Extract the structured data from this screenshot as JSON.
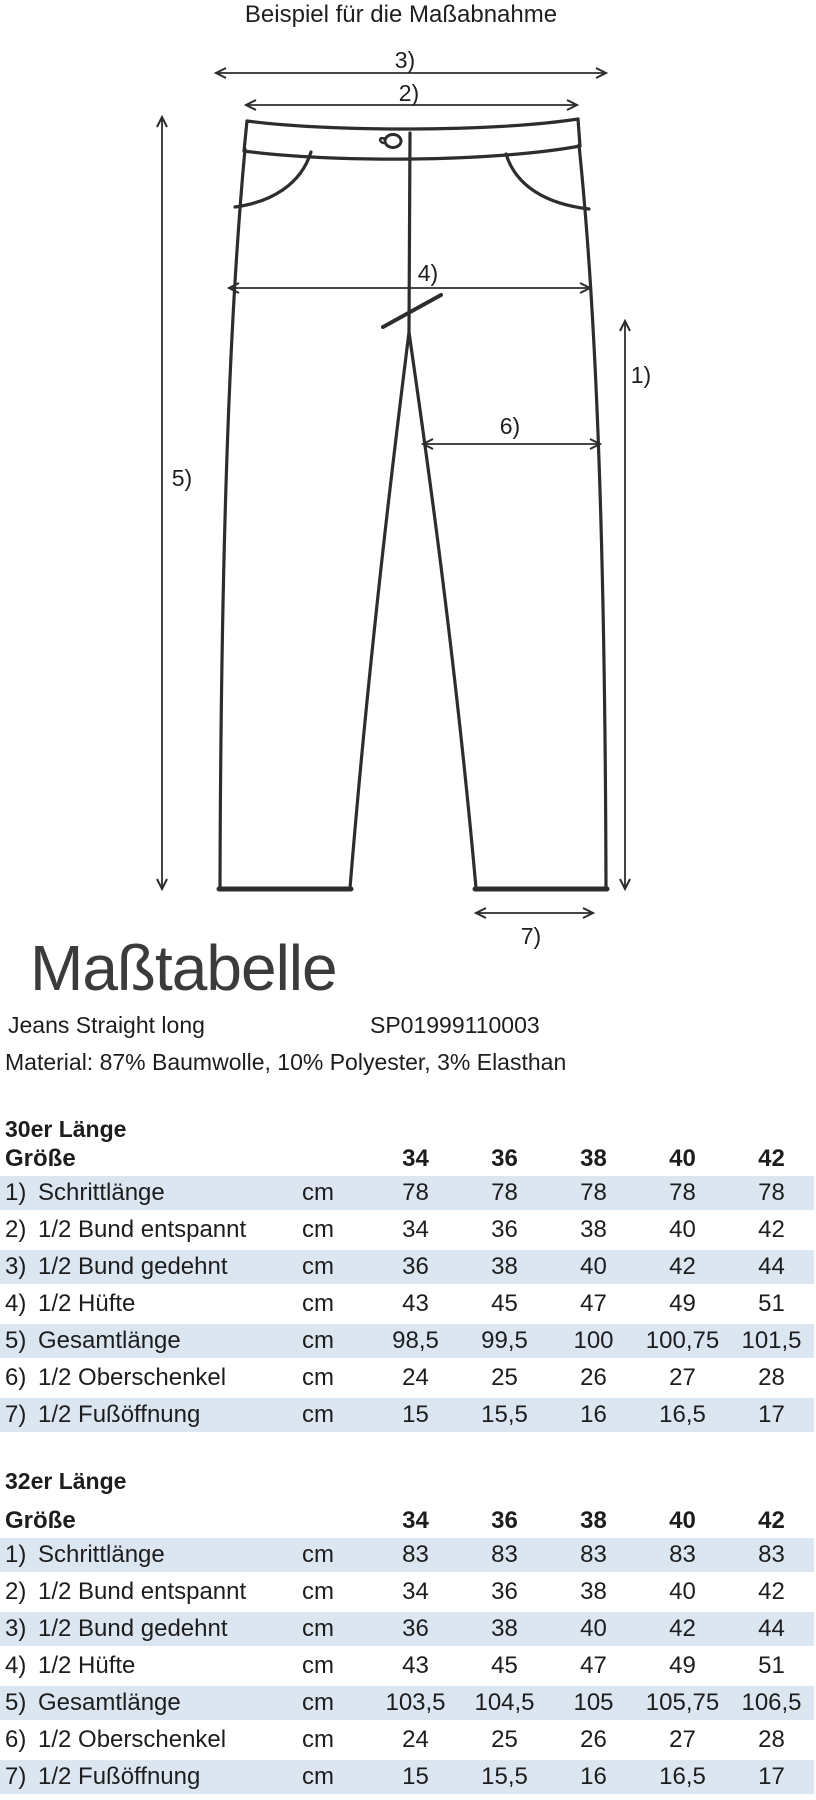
{
  "diagram": {
    "title": "Beispiel für die Maßabnahme",
    "labels": {
      "l1": "1)",
      "l2": "2)",
      "l3": "3)",
      "l4": "4)",
      "l5": "5)",
      "l6": "6)",
      "l7": "7)"
    }
  },
  "info": {
    "heading": "Maßtabelle",
    "product_name": "Jeans Straight long",
    "article_number": "SP01999110003",
    "material": "Material: 87% Baumwolle, 10% Polyester, 3% Elasthan"
  },
  "colors": {
    "row_highlight": "#dce6f1",
    "ink": "#2d2d2d",
    "heading_gray": "#3b3b3b"
  },
  "tables": [
    {
      "section": "30er Länge",
      "header": {
        "label": "Größe",
        "sizes": [
          "34",
          "36",
          "38",
          "40",
          "42"
        ]
      },
      "rows": [
        {
          "num": "1)",
          "label": "Schrittlänge",
          "unit": "cm",
          "values": [
            "78",
            "78",
            "78",
            "78",
            "78"
          ]
        },
        {
          "num": "2)",
          "label": "1/2 Bund entspannt",
          "unit": "cm",
          "values": [
            "34",
            "36",
            "38",
            "40",
            "42"
          ]
        },
        {
          "num": "3)",
          "label": "1/2 Bund gedehnt",
          "unit": "cm",
          "values": [
            "36",
            "38",
            "40",
            "42",
            "44"
          ]
        },
        {
          "num": "4)",
          "label": "1/2 Hüfte",
          "unit": "cm",
          "values": [
            "43",
            "45",
            "47",
            "49",
            "51"
          ]
        },
        {
          "num": "5)",
          "label": "Gesamtlänge",
          "unit": "cm",
          "values": [
            "98,5",
            "99,5",
            "100",
            "100,75",
            "101,5"
          ]
        },
        {
          "num": "6)",
          "label": "1/2 Oberschenkel",
          "unit": "cm",
          "values": [
            "24",
            "25",
            "26",
            "27",
            "28"
          ]
        },
        {
          "num": "7)",
          "label": "1/2 Fußöffnung",
          "unit": "cm",
          "values": [
            "15",
            "15,5",
            "16",
            "16,5",
            "17"
          ]
        }
      ]
    },
    {
      "section": "32er Länge",
      "header": {
        "label": "Größe",
        "sizes": [
          "34",
          "36",
          "38",
          "40",
          "42"
        ]
      },
      "rows": [
        {
          "num": "1)",
          "label": "Schrittlänge",
          "unit": "cm",
          "values": [
            "83",
            "83",
            "83",
            "83",
            "83"
          ]
        },
        {
          "num": "2)",
          "label": "1/2 Bund entspannt",
          "unit": "cm",
          "values": [
            "34",
            "36",
            "38",
            "40",
            "42"
          ]
        },
        {
          "num": "3)",
          "label": "1/2 Bund gedehnt",
          "unit": "cm",
          "values": [
            "36",
            "38",
            "40",
            "42",
            "44"
          ]
        },
        {
          "num": "4)",
          "label": "1/2 Hüfte",
          "unit": "cm",
          "values": [
            "43",
            "45",
            "47",
            "49",
            "51"
          ]
        },
        {
          "num": "5)",
          "label": "Gesamtlänge",
          "unit": "cm",
          "values": [
            "103,5",
            "104,5",
            "105",
            "105,75",
            "106,5"
          ]
        },
        {
          "num": "6)",
          "label": "1/2 Oberschenkel",
          "unit": "cm",
          "values": [
            "24",
            "25",
            "26",
            "27",
            "28"
          ]
        },
        {
          "num": "7)",
          "label": "1/2 Fußöffnung",
          "unit": "cm",
          "values": [
            "15",
            "15,5",
            "16",
            "16,5",
            "17"
          ]
        }
      ]
    }
  ]
}
